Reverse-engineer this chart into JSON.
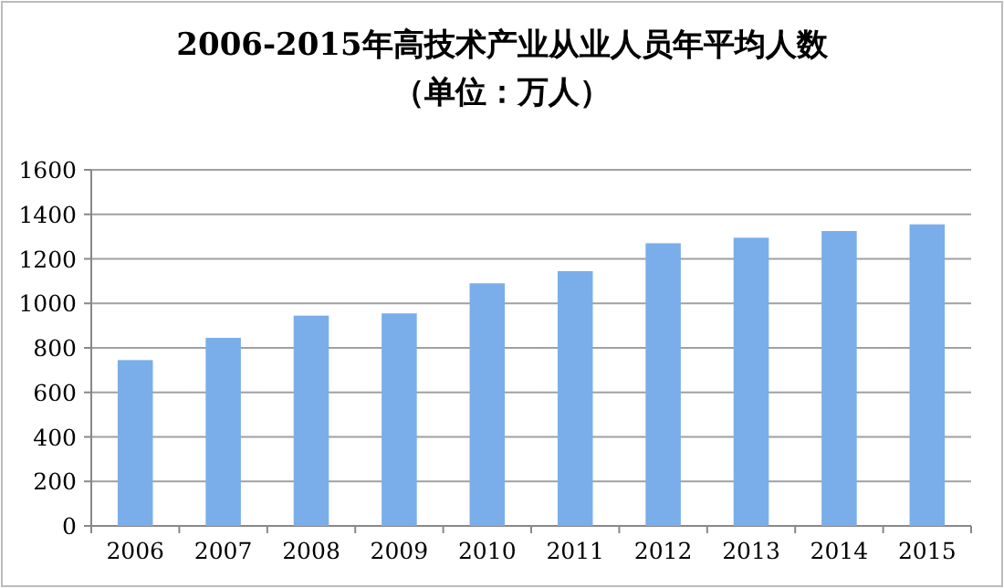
{
  "chart_data": {
    "type": "bar",
    "title": "2006-2015年高技术产业从业人员年平均人数",
    "subtitle": "（单位：万人）",
    "categories": [
      "2006",
      "2007",
      "2008",
      "2009",
      "2010",
      "2011",
      "2012",
      "2013",
      "2014",
      "2015"
    ],
    "values": [
      745,
      845,
      945,
      955,
      1090,
      1145,
      1270,
      1295,
      1325,
      1355
    ],
    "color": "#7aaeea",
    "ylim": [
      0,
      1600
    ],
    "yticks": [
      0,
      200,
      400,
      600,
      800,
      1000,
      1200,
      1400,
      1600
    ],
    "grid": "y"
  }
}
